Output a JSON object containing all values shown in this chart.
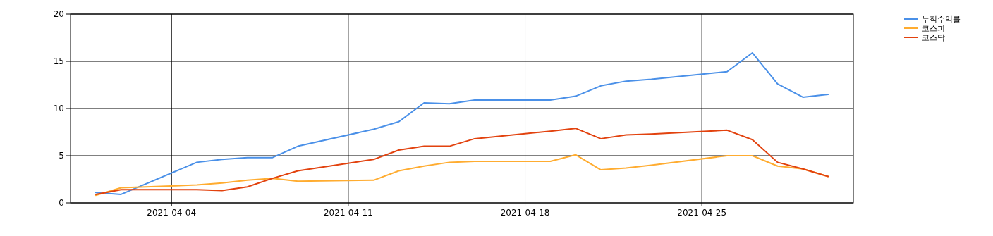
{
  "chart_data": {
    "type": "line",
    "x": [
      "2021-04-01",
      "2021-04-02",
      "2021-04-05",
      "2021-04-06",
      "2021-04-07",
      "2021-04-08",
      "2021-04-09",
      "2021-04-12",
      "2021-04-13",
      "2021-04-14",
      "2021-04-15",
      "2021-04-16",
      "2021-04-19",
      "2021-04-20",
      "2021-04-21",
      "2021-04-22",
      "2021-04-23",
      "2021-04-26",
      "2021-04-27",
      "2021-04-28",
      "2021-04-29",
      "2021-04-30"
    ],
    "series": [
      {
        "name": "누적수익률",
        "color": "#4a90e8",
        "values": [
          1.1,
          0.9,
          4.3,
          4.6,
          4.8,
          4.8,
          6.0,
          7.8,
          8.6,
          10.6,
          10.5,
          10.9,
          10.9,
          11.3,
          12.4,
          12.9,
          13.1,
          13.9,
          15.9,
          12.6,
          11.2,
          11.5
        ]
      },
      {
        "name": "코스피",
        "color": "#ffac30",
        "values": [
          0.8,
          1.6,
          1.9,
          2.1,
          2.4,
          2.6,
          2.3,
          2.4,
          3.4,
          3.9,
          4.3,
          4.4,
          4.4,
          5.1,
          3.5,
          3.7,
          4.0,
          5.0,
          5.0,
          3.9,
          3.6,
          2.8
        ]
      },
      {
        "name": "코스닥",
        "color": "#e2420e",
        "values": [
          0.9,
          1.4,
          1.4,
          1.3,
          1.7,
          2.6,
          3.4,
          4.6,
          5.6,
          6.0,
          6.0,
          6.8,
          7.6,
          7.9,
          6.8,
          7.2,
          7.3,
          7.7,
          6.7,
          4.3,
          3.6,
          2.8
        ]
      }
    ],
    "xlim": [
      "2021-03-31",
      "2021-05-01"
    ],
    "xticks": [
      {
        "value": "2021-04-04",
        "label": "2021-04-04"
      },
      {
        "value": "2021-04-11",
        "label": "2021-04-11"
      },
      {
        "value": "2021-04-18",
        "label": "2021-04-18"
      },
      {
        "value": "2021-04-25",
        "label": "2021-04-25"
      }
    ],
    "ylim": [
      0,
      20
    ],
    "yticks": [
      0,
      5,
      10,
      15,
      20
    ],
    "grid": true,
    "legend": "top right",
    "marker": "none",
    "line_style": "solid"
  }
}
